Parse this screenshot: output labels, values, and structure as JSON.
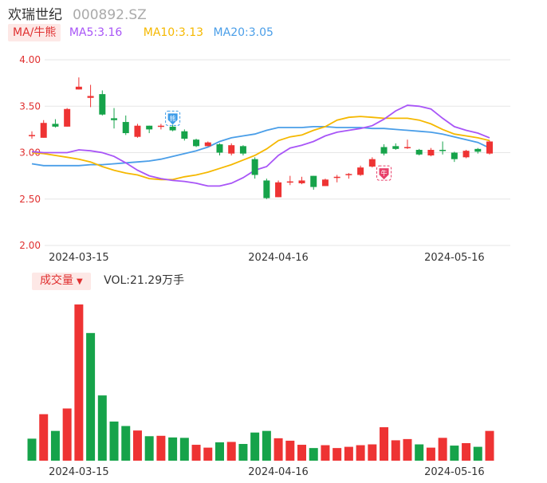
{
  "header": {
    "name": "欢瑞世纪",
    "code": "000892.SZ"
  },
  "ma_legend": {
    "tag": "MA/牛熊",
    "ma5": "MA5:3.16",
    "ma10": "MA10:3.13",
    "ma20": "MA20:3.05"
  },
  "vol_legend": {
    "tag": "成交量",
    "vol": "VOL:21.29万手"
  },
  "colors": {
    "up": "#ee3333",
    "down": "#16a34a",
    "ma5": "#a855f7",
    "ma10": "#f5b800",
    "ma20": "#4a9ee8",
    "axis_text": "#e03030",
    "grid": "#e6e6e6"
  },
  "chart_data": [
    {
      "type": "candlestick",
      "y_ticks": [
        "4.00",
        "3.50",
        "3.00",
        "2.50",
        "2.00"
      ],
      "ylim": [
        2.0,
        4.0
      ],
      "x_tick_labels": [
        "2024-03-15",
        "2024-04-16",
        "2024-05-16"
      ],
      "candles": [
        {
          "o": 3.19,
          "c": 3.19,
          "h": 3.23,
          "l": 3.15
        },
        {
          "o": 3.16,
          "c": 3.32,
          "h": 3.35,
          "l": 3.16
        },
        {
          "o": 3.31,
          "c": 3.28,
          "h": 3.36,
          "l": 3.27
        },
        {
          "o": 3.28,
          "c": 3.47,
          "h": 3.48,
          "l": 3.28
        },
        {
          "o": 3.68,
          "c": 3.71,
          "h": 3.81,
          "l": 3.68
        },
        {
          "o": 3.59,
          "c": 3.61,
          "h": 3.73,
          "l": 3.49
        },
        {
          "o": 3.63,
          "c": 3.41,
          "h": 3.67,
          "l": 3.4
        },
        {
          "o": 3.37,
          "c": 3.35,
          "h": 3.48,
          "l": 3.26
        },
        {
          "o": 3.33,
          "c": 3.21,
          "h": 3.4,
          "l": 3.19
        },
        {
          "o": 3.17,
          "c": 3.29,
          "h": 3.31,
          "l": 3.16
        },
        {
          "o": 3.29,
          "c": 3.25,
          "h": 3.29,
          "l": 3.21
        },
        {
          "o": 3.28,
          "c": 3.29,
          "h": 3.31,
          "l": 3.25
        },
        {
          "o": 3.28,
          "c": 3.24,
          "h": 3.3,
          "l": 3.23
        },
        {
          "o": 3.23,
          "c": 3.15,
          "h": 3.25,
          "l": 3.13
        },
        {
          "o": 3.14,
          "c": 3.07,
          "h": 3.15,
          "l": 3.06
        },
        {
          "o": 3.07,
          "c": 3.11,
          "h": 3.12,
          "l": 3.07
        },
        {
          "o": 3.09,
          "c": 3.0,
          "h": 3.1,
          "l": 2.97
        },
        {
          "o": 2.99,
          "c": 3.08,
          "h": 3.1,
          "l": 2.97
        },
        {
          "o": 3.07,
          "c": 2.99,
          "h": 3.08,
          "l": 2.97
        },
        {
          "o": 2.93,
          "c": 2.76,
          "h": 2.95,
          "l": 2.72
        },
        {
          "o": 2.7,
          "c": 2.51,
          "h": 2.72,
          "l": 2.5
        },
        {
          "o": 2.52,
          "c": 2.68,
          "h": 2.7,
          "l": 2.52
        },
        {
          "o": 2.68,
          "c": 2.69,
          "h": 2.75,
          "l": 2.65
        },
        {
          "o": 2.67,
          "c": 2.7,
          "h": 2.74,
          "l": 2.66
        },
        {
          "o": 2.75,
          "c": 2.63,
          "h": 2.75,
          "l": 2.6
        },
        {
          "o": 2.64,
          "c": 2.71,
          "h": 2.72,
          "l": 2.64
        },
        {
          "o": 2.73,
          "c": 2.74,
          "h": 2.76,
          "l": 2.68
        },
        {
          "o": 2.76,
          "c": 2.77,
          "h": 2.78,
          "l": 2.72
        },
        {
          "o": 2.76,
          "c": 2.84,
          "h": 2.86,
          "l": 2.75
        },
        {
          "o": 2.85,
          "c": 2.93,
          "h": 2.95,
          "l": 2.84
        },
        {
          "o": 3.06,
          "c": 2.99,
          "h": 3.09,
          "l": 2.97
        },
        {
          "o": 3.07,
          "c": 3.04,
          "h": 3.1,
          "l": 3.03
        },
        {
          "o": 3.05,
          "c": 3.06,
          "h": 3.14,
          "l": 3.04
        },
        {
          "o": 3.03,
          "c": 2.98,
          "h": 3.04,
          "l": 2.97
        },
        {
          "o": 2.97,
          "c": 3.03,
          "h": 3.05,
          "l": 2.96
        },
        {
          "o": 3.03,
          "c": 3.02,
          "h": 3.12,
          "l": 2.98
        },
        {
          "o": 3.0,
          "c": 2.93,
          "h": 3.01,
          "l": 2.9
        },
        {
          "o": 2.95,
          "c": 3.02,
          "h": 3.03,
          "l": 2.94
        },
        {
          "o": 3.04,
          "c": 3.01,
          "h": 3.05,
          "l": 2.99
        },
        {
          "o": 2.99,
          "c": 3.12,
          "h": 3.13,
          "l": 2.98
        }
      ],
      "ma5": [
        3.01,
        3.0,
        3.0,
        3.0,
        3.03,
        3.02,
        3.0,
        2.96,
        2.89,
        2.81,
        2.75,
        2.72,
        2.7,
        2.69,
        2.67,
        2.64,
        2.64,
        2.67,
        2.73,
        2.81,
        2.85,
        2.97,
        3.05,
        3.08,
        3.12,
        3.18,
        3.22,
        3.24,
        3.26,
        3.29,
        3.36,
        3.45,
        3.51,
        3.5,
        3.47,
        3.37,
        3.28,
        3.24,
        3.21,
        3.16
      ],
      "ma10": [
        3.0,
        2.99,
        2.97,
        2.95,
        2.93,
        2.9,
        2.85,
        2.81,
        2.78,
        2.76,
        2.72,
        2.71,
        2.71,
        2.74,
        2.76,
        2.79,
        2.83,
        2.87,
        2.92,
        2.97,
        3.04,
        3.13,
        3.17,
        3.19,
        3.24,
        3.28,
        3.35,
        3.38,
        3.39,
        3.38,
        3.37,
        3.37,
        3.37,
        3.35,
        3.31,
        3.25,
        3.2,
        3.18,
        3.16,
        3.13
      ],
      "ma20": [
        2.88,
        2.86,
        2.86,
        2.86,
        2.86,
        2.87,
        2.87,
        2.88,
        2.89,
        2.9,
        2.91,
        2.93,
        2.96,
        2.99,
        3.02,
        3.06,
        3.12,
        3.16,
        3.18,
        3.2,
        3.24,
        3.27,
        3.27,
        3.27,
        3.28,
        3.28,
        3.27,
        3.27,
        3.27,
        3.26,
        3.26,
        3.25,
        3.24,
        3.23,
        3.22,
        3.2,
        3.17,
        3.14,
        3.11,
        3.05
      ],
      "badges": [
        {
          "index": 12,
          "price": 3.37,
          "label": "熊"
        },
        {
          "index": 30,
          "price": 2.78,
          "label": "牛"
        }
      ]
    },
    {
      "type": "bar",
      "name": "成交量",
      "x_tick_labels": [
        "2024-03-15",
        "2024-04-16",
        "2024-05-16"
      ],
      "values": [
        5.4,
        11.4,
        7.3,
        12.8,
        38.3,
        31.3,
        16.0,
        9.6,
        8.5,
        7.4,
        6.0,
        6.1,
        5.7,
        5.6,
        3.9,
        3.2,
        4.5,
        4.6,
        4.1,
        6.9,
        7.3,
        5.5,
        4.9,
        3.9,
        3.1,
        3.8,
        3.1,
        3.4,
        3.8,
        4.0,
        8.2,
        5.0,
        5.3,
        4.0,
        3.2,
        5.6,
        3.7,
        4.3,
        3.4,
        7.3
      ],
      "up": [
        false,
        true,
        false,
        true,
        true,
        false,
        false,
        false,
        false,
        true,
        false,
        true,
        false,
        false,
        true,
        true,
        false,
        true,
        false,
        false,
        false,
        true,
        true,
        true,
        false,
        true,
        true,
        true,
        true,
        true,
        true,
        true,
        true,
        false,
        true,
        true,
        false,
        true,
        false,
        true
      ]
    }
  ]
}
